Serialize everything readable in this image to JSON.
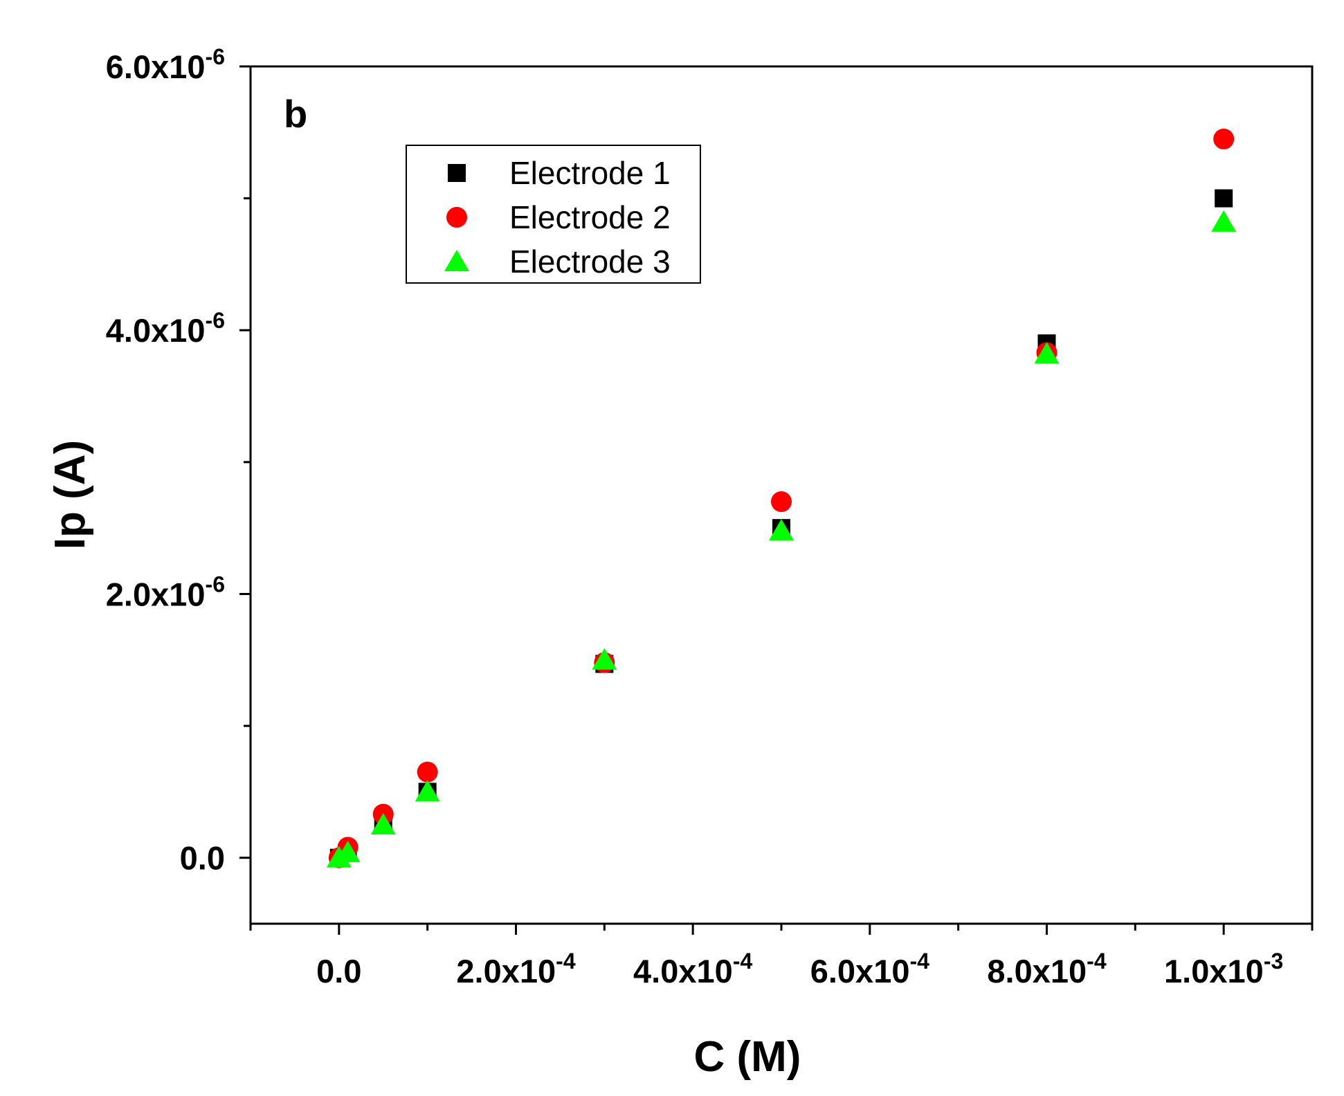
{
  "chart_data": {
    "type": "scatter",
    "panel_label": "b",
    "xlabel": "C (M)",
    "ylabel": "Ip (A)",
    "xlim": [
      -0.0001,
      0.0011
    ],
    "ylim": [
      -5e-07,
      6e-06
    ],
    "x_ticks": [
      {
        "value": 0.0,
        "mantissa": "0.0",
        "exponent": ""
      },
      {
        "value": 0.0002,
        "mantissa": "2.0x10",
        "exponent": "-4"
      },
      {
        "value": 0.0004,
        "mantissa": "4.0x10",
        "exponent": "-4"
      },
      {
        "value": 0.0006,
        "mantissa": "6.0x10",
        "exponent": "-4"
      },
      {
        "value": 0.0008,
        "mantissa": "8.0x10",
        "exponent": "-4"
      },
      {
        "value": 0.001,
        "mantissa": "1.0x10",
        "exponent": "-3"
      }
    ],
    "x_minor_ticks": [
      -0.0001,
      0.0001,
      0.0003,
      0.0005,
      0.0007,
      0.0009,
      0.0011
    ],
    "y_ticks": [
      {
        "value": 0.0,
        "mantissa": "0.0",
        "exponent": ""
      },
      {
        "value": 2e-06,
        "mantissa": "2.0x10",
        "exponent": "-6"
      },
      {
        "value": 4e-06,
        "mantissa": "4.0x10",
        "exponent": "-6"
      },
      {
        "value": 6e-06,
        "mantissa": "6.0x10",
        "exponent": "-6"
      }
    ],
    "y_minor_ticks": [
      1e-06,
      3e-06,
      5e-06
    ],
    "legend_position": "top-left",
    "series": [
      {
        "name": "Electrode 1",
        "marker": "square",
        "color": "#000000",
        "x": [
          0.0,
          1e-05,
          5e-05,
          0.0001,
          0.0003,
          0.0005,
          0.0008,
          0.001
        ],
        "y": [
          0.0,
          4e-08,
          2.5e-07,
          5e-07,
          1.47e-06,
          2.5e-06,
          3.9e-06,
          5e-06
        ]
      },
      {
        "name": "Electrode 2",
        "marker": "circle",
        "color": "#ff0000",
        "x": [
          0.0,
          1e-05,
          5e-05,
          0.0001,
          0.0003,
          0.0005,
          0.0008,
          0.001
        ],
        "y": [
          0.0,
          8e-08,
          3.3e-07,
          6.5e-07,
          1.48e-06,
          2.7e-06,
          3.83e-06,
          5.45e-06
        ]
      },
      {
        "name": "Electrode 3",
        "marker": "triangle",
        "color": "#00ff00",
        "x": [
          0.0,
          1e-05,
          5e-05,
          0.0001,
          0.0003,
          0.0005,
          0.0008,
          0.001
        ],
        "y": [
          0.0,
          4e-08,
          2.5e-07,
          5e-07,
          1.5e-06,
          2.48e-06,
          3.82e-06,
          4.82e-06
        ]
      }
    ]
  }
}
